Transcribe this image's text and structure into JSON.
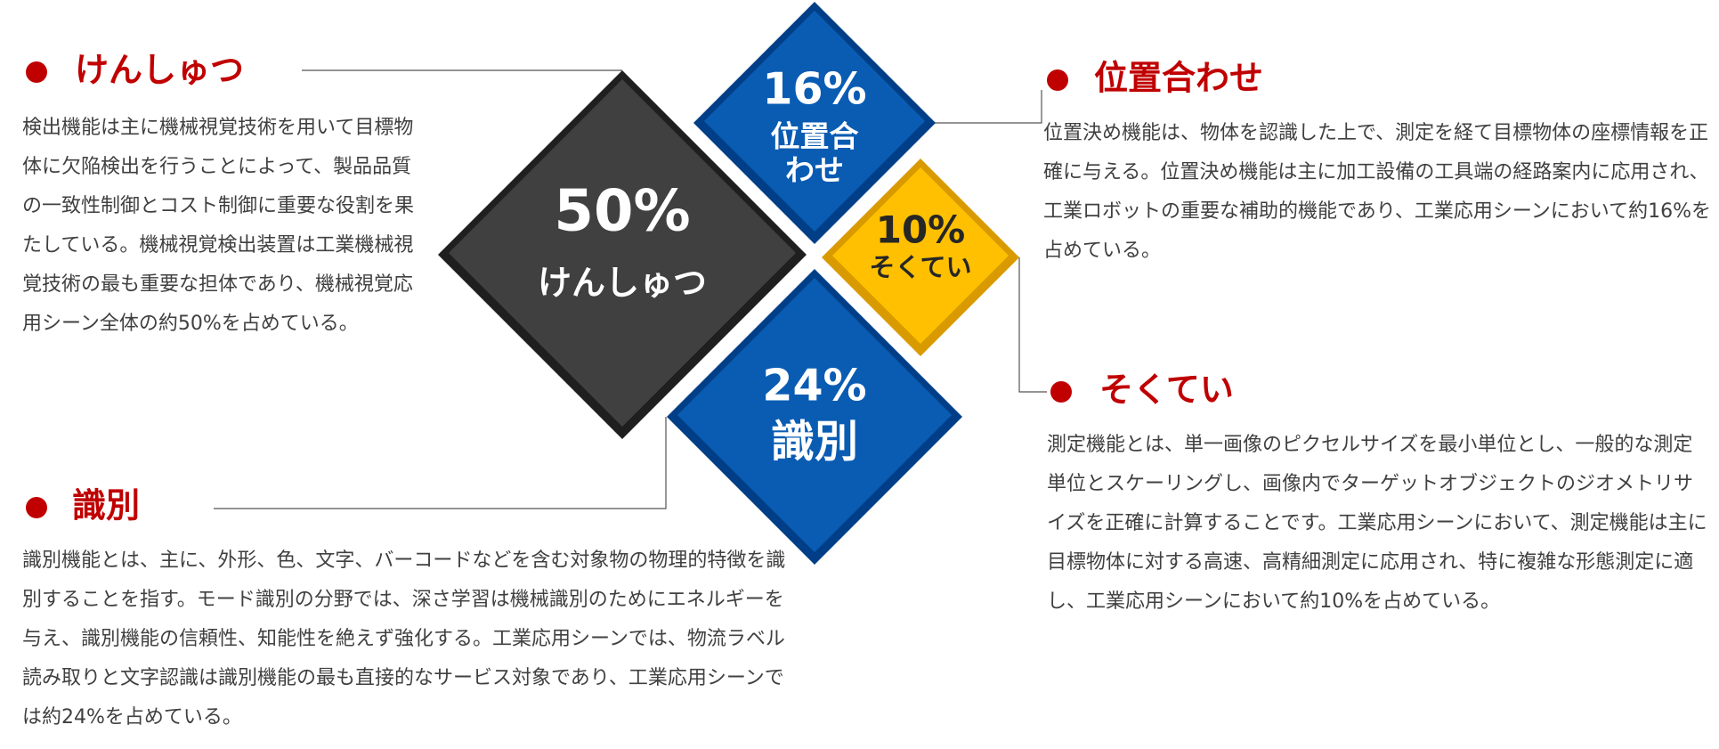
{
  "sections": [
    {
      "heading": "けんしゅつ",
      "percent": "50%",
      "diamond_lines": [
        "けんしゅつ"
      ],
      "description": "検出機能は主に機械視覚技術を用いて目標物体に欠陥検出を行うことによって、製品品質の一致性制御とコスト制御に重要な役割を果たしている。機械視覚検出装置は工業機械視覚技術の最も重要な担体であり、機械視覚応用シーン全体の約50%を占めている。"
    },
    {
      "heading": "位置合わせ",
      "percent": "16%",
      "diamond_lines": [
        "位置合",
        "わせ"
      ],
      "description": "位置決め機能は、物体を認識した上で、測定を経て目標物体の座標情報を正確に与える。位置決め機能は主に加工設備の工具端の経路案内に応用され、工業ロボットの重要な補助的機能であり、工業応用シーンにおいて約16%を占めている。"
    },
    {
      "heading": "そくてい",
      "percent": "10%",
      "diamond_lines": [
        "そくてい"
      ],
      "description": "測定機能とは、単一画像のピクセルサイズを最小単位とし、一般的な測定単位とスケーリングし、画像内でターゲットオブジェクトのジオメトリサイズを正確に計算することです。工業応用シーンにおいて、測定機能は主に目標物体に対する高速、高精細測定に応用され、特に複雑な形態測定に適し、工業応用シーンにおいて約10%を占めている。"
    },
    {
      "heading": "識別",
      "percent": "24%",
      "diamond_lines": [
        "識別"
      ],
      "description": "識別機能とは、主に、外形、色、文字、バーコードなどを含む対象物の物理的特徴を識別することを指す。モード識別の分野では、深さ学習は機械識別のためにエネルギーを与え、識別機能の信頼性、知能性を絶えず強化する。工業応用シーンでは、物流ラベル読み取りと文字認識は識別機能の最も直接的なサービス対象であり、工業応用シーンでは約24%を占めている。"
    }
  ]
}
